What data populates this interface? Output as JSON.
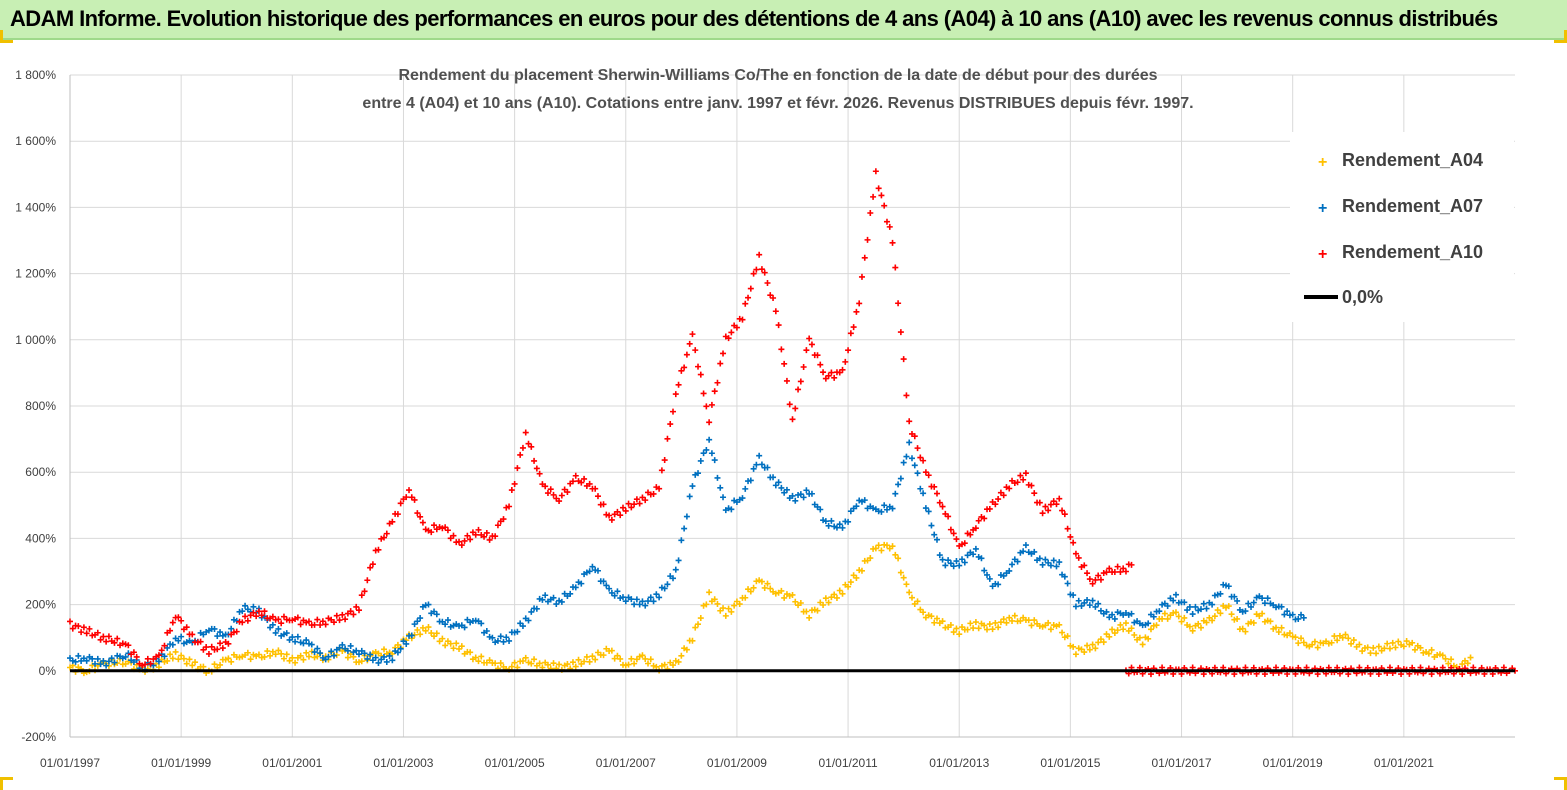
{
  "header": {
    "title": "ADAM Informe. Evolution historique des performances en euros pour des détentions de 4 ans (A04) à 10 ans (A10) avec les revenus connus distribués"
  },
  "colors": {
    "a04": "#ffc000",
    "a07": "#0070c0",
    "a10": "#ff0000",
    "zero": "#000000",
    "grid": "#d9d9d9"
  },
  "chart_data": {
    "type": "scatter",
    "title_lines": [
      "Rendement du placement Sherwin-Williams Co/The en fonction de la date de début pour des durées",
      "entre 4 (A04) et 10 ans (A10).  Cotations entre janv. 1997 et févr. 2026. Revenus DISTRIBUES depuis févr. 1997."
    ],
    "x_range": [
      1997.0,
      2023.0
    ],
    "ylim": [
      -200,
      1800
    ],
    "y_ticks": [
      {
        "value": -200,
        "label": "-200%"
      },
      {
        "value": 0,
        "label": "0%"
      },
      {
        "value": 200,
        "label": "200%"
      },
      {
        "value": 400,
        "label": "400%"
      },
      {
        "value": 600,
        "label": "600%"
      },
      {
        "value": 800,
        "label": "800%"
      },
      {
        "value": 1000,
        "label": "1 000%"
      },
      {
        "value": 1200,
        "label": "1 200%"
      },
      {
        "value": 1400,
        "label": "1 400%"
      },
      {
        "value": 1600,
        "label": "1 600%"
      },
      {
        "value": 1800,
        "label": "1 800%"
      }
    ],
    "x_ticks": [
      {
        "value": 1997,
        "label": "01/01/1997"
      },
      {
        "value": 1999,
        "label": "01/01/1999"
      },
      {
        "value": 2001,
        "label": "01/01/2001"
      },
      {
        "value": 2003,
        "label": "01/01/2003"
      },
      {
        "value": 2005,
        "label": "01/01/2005"
      },
      {
        "value": 2007,
        "label": "01/01/2007"
      },
      {
        "value": 2009,
        "label": "01/01/2009"
      },
      {
        "value": 2011,
        "label": "01/01/2011"
      },
      {
        "value": 2013,
        "label": "01/01/2013"
      },
      {
        "value": 2015,
        "label": "01/01/2015"
      },
      {
        "value": 2017,
        "label": "01/01/2017"
      },
      {
        "value": 2019,
        "label": "01/01/2019"
      },
      {
        "value": 2021,
        "label": "01/01/2021"
      }
    ],
    "legend": [
      {
        "name": "Rendement_A04",
        "color_key": "a04",
        "marker": "plus"
      },
      {
        "name": "Rendement_A07",
        "color_key": "a07",
        "marker": "plus"
      },
      {
        "name": "Rendement_A10",
        "color_key": "a10",
        "marker": "plus"
      },
      {
        "name": "0,0%",
        "color_key": "zero",
        "marker": "line"
      }
    ],
    "series": [
      {
        "name": "Rendement_A04",
        "color_key": "a04",
        "x": [
          1997.0,
          1997.3,
          1997.6,
          1998.0,
          1998.3,
          1998.6,
          1998.9,
          1999.2,
          1999.5,
          1999.8,
          2000.1,
          2000.4,
          2000.7,
          2001.0,
          2001.3,
          2001.6,
          2001.9,
          2002.2,
          2002.5,
          2002.8,
          2003.1,
          2003.4,
          2003.7,
          2004.0,
          2004.3,
          2004.6,
          2004.9,
          2005.2,
          2005.5,
          2005.8,
          2006.1,
          2006.4,
          2006.7,
          2007.0,
          2007.3,
          2007.6,
          2007.9,
          2008.2,
          2008.5,
          2008.8,
          2009.1,
          2009.4,
          2009.7,
          2010.0,
          2010.3,
          2010.6,
          2010.9,
          2011.2,
          2011.5,
          2011.8,
          2012.1,
          2012.4,
          2012.7,
          2013.0,
          2013.3,
          2013.6,
          2013.9,
          2014.2,
          2014.5,
          2014.8,
          2015.1,
          2015.4,
          2015.7,
          2016.0,
          2016.3,
          2016.6,
          2016.9,
          2017.2,
          2017.5,
          2017.8,
          2018.1,
          2018.4,
          2018.7,
          2019.0,
          2019.3,
          2019.6,
          2019.9,
          2020.2,
          2020.5,
          2020.8,
          2021.1,
          2021.4,
          2021.7,
          2022.0,
          2022.2
        ],
        "y": [
          10,
          0,
          20,
          30,
          0,
          20,
          50,
          20,
          0,
          30,
          50,
          40,
          60,
          30,
          50,
          40,
          60,
          30,
          50,
          60,
          100,
          130,
          90,
          70,
          40,
          20,
          10,
          30,
          20,
          10,
          20,
          40,
          60,
          20,
          40,
          10,
          20,
          100,
          230,
          170,
          220,
          270,
          240,
          220,
          170,
          210,
          240,
          300,
          370,
          380,
          230,
          170,
          140,
          120,
          140,
          130,
          160,
          150,
          140,
          130,
          60,
          70,
          110,
          140,
          80,
          160,
          170,
          130,
          150,
          200,
          120,
          170,
          130,
          100,
          80,
          80,
          110,
          70,
          60,
          80,
          80,
          60,
          40,
          10,
          40
        ]
      },
      {
        "name": "Rendement_A07",
        "color_key": "a07",
        "x": [
          1997.0,
          1997.3,
          1997.6,
          1998.0,
          1998.3,
          1998.6,
          1998.9,
          1999.2,
          1999.5,
          1999.8,
          2000.1,
          2000.4,
          2000.7,
          2001.0,
          2001.3,
          2001.6,
          2001.9,
          2002.2,
          2002.5,
          2002.8,
          2003.1,
          2003.4,
          2003.7,
          2004.0,
          2004.3,
          2004.6,
          2004.9,
          2005.2,
          2005.5,
          2005.8,
          2006.1,
          2006.4,
          2006.7,
          2007.0,
          2007.3,
          2007.6,
          2007.9,
          2008.2,
          2008.5,
          2008.8,
          2009.1,
          2009.4,
          2009.7,
          2010.0,
          2010.3,
          2010.6,
          2010.9,
          2011.2,
          2011.5,
          2011.8,
          2012.1,
          2012.4,
          2012.7,
          2013.0,
          2013.3,
          2013.6,
          2013.9,
          2014.2,
          2014.5,
          2014.8,
          2015.1,
          2015.4,
          2015.7,
          2016.0,
          2016.3,
          2016.6,
          2016.9,
          2017.2,
          2017.5,
          2017.8,
          2018.1,
          2018.4,
          2018.7,
          2019.0,
          2019.2
        ],
        "y": [
          30,
          40,
          20,
          50,
          10,
          30,
          100,
          80,
          130,
          100,
          190,
          180,
          120,
          100,
          80,
          40,
          70,
          60,
          30,
          40,
          100,
          200,
          150,
          130,
          160,
          90,
          100,
          150,
          220,
          210,
          250,
          320,
          240,
          220,
          200,
          230,
          300,
          560,
          700,
          480,
          530,
          640,
          570,
          520,
          540,
          450,
          430,
          520,
          480,
          500,
          680,
          500,
          330,
          320,
          370,
          250,
          310,
          370,
          330,
          320,
          200,
          210,
          160,
          180,
          130,
          190,
          220,
          180,
          200,
          260,
          180,
          220,
          200,
          160,
          160
        ]
      },
      {
        "name": "Rendement_A10",
        "color_key": "a10",
        "x": [
          1997.0,
          1997.3,
          1997.6,
          1998.0,
          1998.3,
          1998.6,
          1998.9,
          1999.2,
          1999.5,
          1999.8,
          2000.1,
          2000.4,
          2000.7,
          2001.0,
          2001.3,
          2001.6,
          2001.9,
          2002.2,
          2002.5,
          2002.8,
          2003.1,
          2003.4,
          2003.7,
          2004.0,
          2004.3,
          2004.6,
          2004.9,
          2005.2,
          2005.5,
          2005.8,
          2006.1,
          2006.4,
          2006.7,
          2007.0,
          2007.3,
          2007.6,
          2007.9,
          2008.2,
          2008.5,
          2008.8,
          2009.1,
          2009.4,
          2009.7,
          2010.0,
          2010.3,
          2010.6,
          2010.9,
          2011.2,
          2011.5,
          2011.8,
          2012.1,
          2012.4,
          2012.7,
          2013.0,
          2013.3,
          2013.6,
          2013.9,
          2014.2,
          2014.5,
          2014.8,
          2015.1,
          2015.4,
          2015.7,
          2016.0,
          2016.1
        ],
        "y": [
          140,
          120,
          100,
          80,
          20,
          40,
          170,
          100,
          60,
          80,
          150,
          180,
          150,
          160,
          140,
          150,
          160,
          190,
          360,
          450,
          550,
          420,
          440,
          380,
          420,
          400,
          500,
          720,
          560,
          520,
          580,
          560,
          460,
          490,
          520,
          550,
          840,
          1010,
          760,
          1000,
          1070,
          1250,
          1090,
          760,
          1000,
          890,
          900,
          1120,
          1500,
          1300,
          750,
          600,
          500,
          370,
          440,
          500,
          560,
          590,
          480,
          520,
          350,
          270,
          300,
          310,
          320
        ]
      },
      {
        "name": "Rendement_A10_zero_tail",
        "color_key": "a10",
        "x": [
          2016.0,
          2023.0
        ],
        "y": [
          0,
          0
        ]
      }
    ],
    "zero_line": {
      "x": [
        1997.0,
        2023.0
      ],
      "y": [
        0,
        0
      ]
    }
  }
}
